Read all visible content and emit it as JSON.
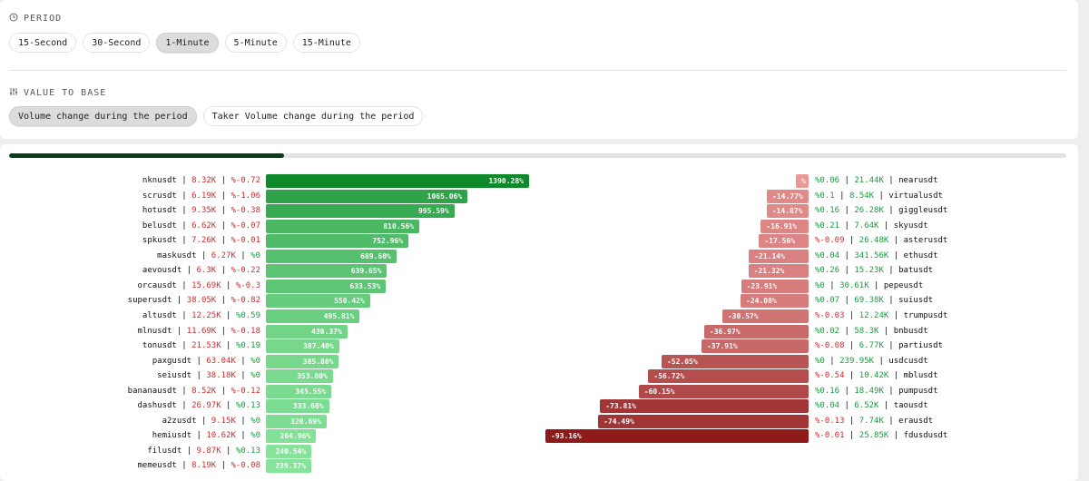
{
  "period": {
    "label": "PERIOD",
    "options": [
      "15-Second",
      "30-Second",
      "1-Minute",
      "5-Minute",
      "15-Minute"
    ],
    "selected": "1-Minute"
  },
  "value_to_base": {
    "label": "VALUE TO BASE",
    "options": [
      "Volume change during the period",
      "Taker Volume change during the period"
    ],
    "selected": "Volume change during the period"
  },
  "progress": {
    "value": 0.26
  },
  "colors": {
    "bar_green_dark": "#0e8a2a",
    "bar_green_light": "#86e39a",
    "bar_red_dark": "#8e1a1a",
    "bar_red_light": "#ef9e9e",
    "text_green": "#1a9c3d",
    "text_red": "#d12c2c"
  },
  "chart_data": {
    "type": "bar",
    "gainers": [
      {
        "symbol": "nknusdt",
        "volume": "8.32K",
        "change": "%-0.72",
        "value": 1390.28,
        "label": "1390.28%"
      },
      {
        "symbol": "scrusdt",
        "volume": "6.19K",
        "change": "%-1.06",
        "value": 1065.06,
        "label": "1065.06%"
      },
      {
        "symbol": "hotusdt",
        "volume": "9.35K",
        "change": "%-0.38",
        "value": 995.59,
        "label": "995.59%"
      },
      {
        "symbol": "belusdt",
        "volume": "6.62K",
        "change": "%-0.07",
        "value": 810.56,
        "label": "810.56%"
      },
      {
        "symbol": "spkusdt",
        "volume": "7.26K",
        "change": "%-0.01",
        "value": 752.96,
        "label": "752.96%"
      },
      {
        "symbol": "maskusdt",
        "volume": "6.27K",
        "change": "%0",
        "value": 689.6,
        "label": "689.60%"
      },
      {
        "symbol": "aevousdt",
        "volume": "6.3K",
        "change": "%-0.22",
        "value": 639.65,
        "label": "639.65%"
      },
      {
        "symbol": "orcausdt",
        "volume": "15.69K",
        "change": "%-0.3",
        "value": 633.53,
        "label": "633.53%"
      },
      {
        "symbol": "superusdt",
        "volume": "38.05K",
        "change": "%-0.82",
        "value": 550.42,
        "label": "550.42%"
      },
      {
        "symbol": "altusdt",
        "volume": "12.25K",
        "change": "%0.59",
        "value": 495.81,
        "label": "495.81%"
      },
      {
        "symbol": "mlnusdt",
        "volume": "11.69K",
        "change": "%-0.18",
        "value": 430.37,
        "label": "430.37%"
      },
      {
        "symbol": "tonusdt",
        "volume": "21.53K",
        "change": "%0.19",
        "value": 387.4,
        "label": "387.40%"
      },
      {
        "symbol": "paxgusdt",
        "volume": "63.04K",
        "change": "%0",
        "value": 385.8,
        "label": "385.80%"
      },
      {
        "symbol": "seiusdt",
        "volume": "38.18K",
        "change": "%0",
        "value": 353.8,
        "label": "353.80%"
      },
      {
        "symbol": "bananausdt",
        "volume": "8.52K",
        "change": "%-0.12",
        "value": 345.55,
        "label": "345.55%"
      },
      {
        "symbol": "dashusdt",
        "volume": "26.97K",
        "change": "%0.13",
        "value": 333.68,
        "label": "333.68%"
      },
      {
        "symbol": "a2zusdt",
        "volume": "9.15K",
        "change": "%0",
        "value": 320.69,
        "label": "320.69%"
      },
      {
        "symbol": "hemiusdt",
        "volume": "10.62K",
        "change": "%0",
        "value": 264.96,
        "label": "264.96%"
      },
      {
        "symbol": "filusdt",
        "volume": "9.87K",
        "change": "%0.13",
        "value": 240.54,
        "label": "240.54%"
      },
      {
        "symbol": "memeusdt",
        "volume": "8.19K",
        "change": "%-0.08",
        "value": 239.37,
        "label": "239.37%"
      }
    ],
    "losers": [
      {
        "symbol": "nearusdt",
        "volume": "21.44K",
        "change": "%0.06",
        "value": -4.5,
        "label": "%"
      },
      {
        "symbol": "virtualusdt",
        "volume": "8.54K",
        "change": "%0.1",
        "value": -14.77,
        "label": "-14.77%"
      },
      {
        "symbol": "giggleusdt",
        "volume": "26.28K",
        "change": "%0.16",
        "value": -14.87,
        "label": "-14.87%"
      },
      {
        "symbol": "skyusdt",
        "volume": "7.64K",
        "change": "%0.21",
        "value": -16.91,
        "label": "-16.91%"
      },
      {
        "symbol": "asterusdt",
        "volume": "26.48K",
        "change": "%-0.09",
        "value": -17.56,
        "label": "-17.56%"
      },
      {
        "symbol": "ethusdt",
        "volume": "341.56K",
        "change": "%0.04",
        "value": -21.14,
        "label": "-21.14%"
      },
      {
        "symbol": "batusdt",
        "volume": "15.23K",
        "change": "%0.26",
        "value": -21.32,
        "label": "-21.32%"
      },
      {
        "symbol": "pepeusdt",
        "volume": "30.61K",
        "change": "%0",
        "value": -23.91,
        "label": "-23.91%"
      },
      {
        "symbol": "suiusdt",
        "volume": "69.38K",
        "change": "%0.07",
        "value": -24.08,
        "label": "-24.08%"
      },
      {
        "symbol": "trumpusdt",
        "volume": "12.24K",
        "change": "%-0.03",
        "value": -30.57,
        "label": "-30.57%"
      },
      {
        "symbol": "bnbusdt",
        "volume": "58.3K",
        "change": "%0.02",
        "value": -36.97,
        "label": "-36.97%"
      },
      {
        "symbol": "partiusdt",
        "volume": "6.77K",
        "change": "%-0.08",
        "value": -37.91,
        "label": "-37.91%"
      },
      {
        "symbol": "usdcusdt",
        "volume": "239.95K",
        "change": "%0",
        "value": -52.05,
        "label": "-52.05%"
      },
      {
        "symbol": "mblusdt",
        "volume": "10.42K",
        "change": "%-0.54",
        "value": -56.72,
        "label": "-56.72%"
      },
      {
        "symbol": "pumpusdt",
        "volume": "18.49K",
        "change": "%0.16",
        "value": -60.15,
        "label": "-60.15%"
      },
      {
        "symbol": "taousdt",
        "volume": "6.52K",
        "change": "%0.04",
        "value": -73.81,
        "label": "-73.81%"
      },
      {
        "symbol": "erausdt",
        "volume": "7.74K",
        "change": "%-0.13",
        "value": -74.49,
        "label": "-74.49%"
      },
      {
        "symbol": "fdusdusdt",
        "volume": "25.85K",
        "change": "%-0.01",
        "value": -93.16,
        "label": "-93.16%"
      }
    ]
  }
}
